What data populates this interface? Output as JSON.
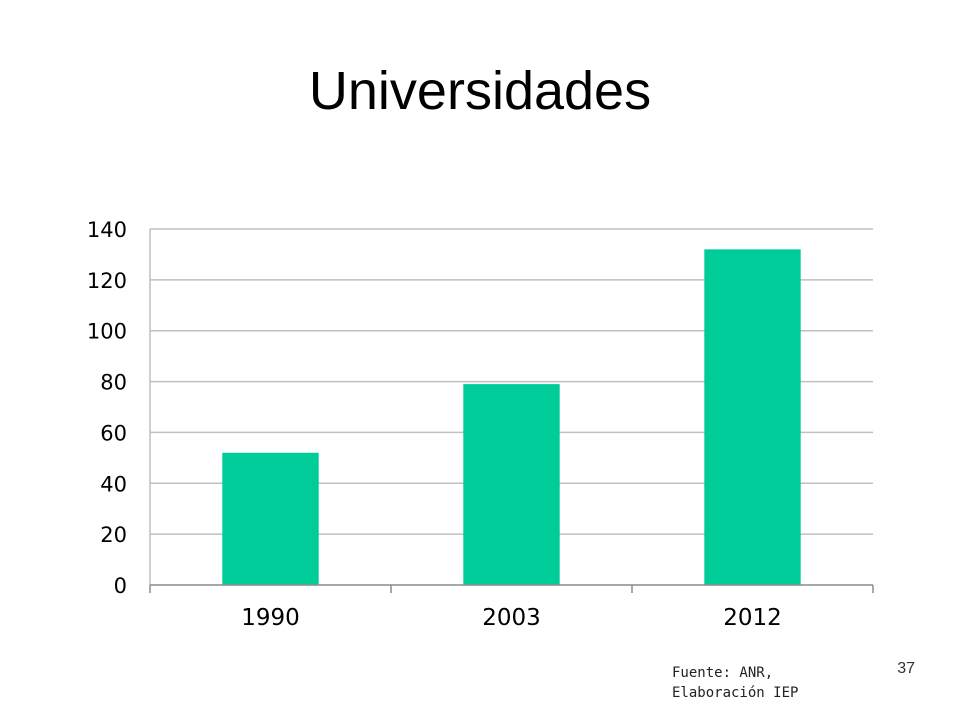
{
  "slide": {
    "title": "Universidades",
    "source_line1": "Fuente: ANR,",
    "source_line2": "Elaboración IEP",
    "page_number": "37"
  },
  "colors": {
    "bar": "#00CC99",
    "grid": "#BFBFBF",
    "axis": "#8C8C8C"
  },
  "chart_data": {
    "type": "bar",
    "categories": [
      "1990",
      "2003",
      "2012"
    ],
    "values": [
      52,
      79,
      132
    ],
    "title": "",
    "xlabel": "",
    "ylabel": "",
    "ylim": [
      0,
      140
    ],
    "yticks": [
      0,
      20,
      40,
      60,
      80,
      100,
      120,
      140
    ],
    "grid": true,
    "legend": "none"
  }
}
